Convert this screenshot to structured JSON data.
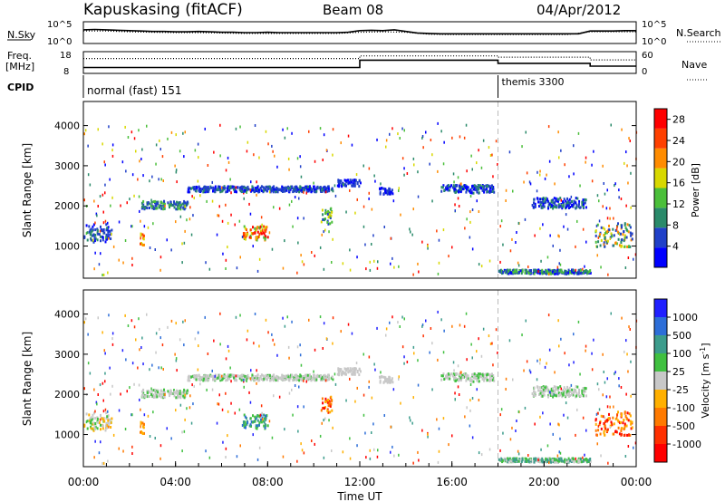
{
  "header": {
    "station": "Kapuskasing (fitACF)",
    "beam": "Beam 08",
    "date": "04/Apr/2012"
  },
  "colors": {
    "power": [
      "#0000ff",
      "#2040c8",
      "#2a8a6a",
      "#4bbf3a",
      "#d8d800",
      "#ff8c00",
      "#ff4000",
      "#ff0000"
    ],
    "velocity": [
      "#2020ff",
      "#2d6ed8",
      "#3c9c8c",
      "#40c040",
      "#c8c8c8",
      "#ffb000",
      "#ff7a00",
      "#ff3000",
      "#ff0000"
    ],
    "line": "#000000",
    "dash": "#bbbbbb"
  },
  "chart_data": [
    {
      "type": "line",
      "panel": "Noise",
      "left_axis_label": "N.Sky",
      "left_ticks": [
        "10^5",
        "10^0"
      ],
      "right_axis_label": "N.Search",
      "right_ticks": [
        "10^5",
        "10^0"
      ],
      "series": [
        {
          "name": "N.Sky",
          "style": "solid",
          "x": [
            0,
            0.5,
            1,
            1.5,
            2,
            2.5,
            3,
            3.5,
            4,
            4.5,
            5,
            5.5,
            6,
            6.5,
            7,
            7.5,
            8,
            8.5,
            9,
            9.5,
            10,
            10.5,
            11,
            11.5,
            12,
            12.5,
            13,
            13.5,
            14,
            14.5,
            15,
            15.5,
            16,
            16.5,
            17,
            17.5,
            18,
            18.5,
            19,
            19.5,
            20,
            20.5,
            21,
            21.5,
            22,
            22.5,
            23,
            23.5,
            24
          ],
          "y": [
            3.2,
            3.3,
            3.2,
            3.1,
            3.0,
            2.9,
            2.8,
            2.8,
            2.7,
            2.7,
            2.8,
            2.7,
            2.6,
            2.6,
            2.5,
            2.5,
            2.6,
            2.5,
            2.5,
            2.5,
            2.5,
            2.5,
            2.5,
            2.6,
            3.0,
            3.1,
            3.0,
            3.2,
            2.8,
            2.4,
            2.3,
            2.2,
            2.2,
            2.2,
            2.2,
            2.2,
            2.2,
            2.2,
            2.2,
            2.2,
            2.2,
            2.2,
            2.2,
            2.2,
            2.9,
            2.9,
            2.9,
            3.0,
            3.0
          ]
        },
        {
          "name": "N.Search",
          "style": "dotted",
          "x": [
            0,
            1,
            2,
            3,
            4,
            5,
            6,
            7,
            8,
            9,
            10,
            11,
            12,
            13,
            14,
            15,
            16,
            17,
            18,
            19,
            20,
            21,
            22,
            23,
            24
          ],
          "y": [
            2.9,
            2.9,
            2.7,
            2.6,
            2.5,
            2.5,
            2.4,
            2.3,
            2.3,
            2.3,
            2.3,
            2.3,
            2.6,
            2.7,
            2.6,
            2.1,
            2.0,
            2.0,
            2.0,
            2.0,
            2.0,
            2.0,
            2.7,
            2.7,
            2.7
          ]
        }
      ],
      "xlim": [
        0,
        24
      ],
      "ylim": [
        0,
        5
      ]
    },
    {
      "type": "line",
      "panel": "Frequency",
      "left_axis_label": "Freq.",
      "left_unit": "[MHz]",
      "left_ticks": [
        "18",
        "8"
      ],
      "right_axis_label": "Nave",
      "right_ticks": [
        "60",
        "0"
      ],
      "series": [
        {
          "name": "Freq.",
          "style": "solid",
          "x": [
            0,
            12,
            12,
            18,
            18,
            22,
            22,
            24
          ],
          "y": [
            10.5,
            10.5,
            14.2,
            14.2,
            12.6,
            12.6,
            11.2,
            11.2
          ]
        },
        {
          "name": "Nave",
          "style": "dotted",
          "x": [
            0,
            12,
            12,
            18,
            18,
            22,
            22,
            24
          ],
          "y": [
            42,
            42,
            50,
            50,
            46,
            46,
            38,
            38
          ]
        }
      ],
      "xlim": [
        0,
        24
      ]
    },
    {
      "type": "table",
      "panel": "CPID",
      "label": "CPID",
      "segments": [
        {
          "name": "normal (fast) 151",
          "start": 0,
          "end": 18
        },
        {
          "name": "themis 3300",
          "start": 18,
          "end": 24
        }
      ]
    },
    {
      "type": "heatmap",
      "panel": "Power",
      "ylabel": "Slant Range [km]",
      "yticks": [
        1000,
        2000,
        3000,
        4000
      ],
      "ylim": [
        200,
        4600
      ],
      "xlim": [
        0,
        24
      ],
      "colorbar_label": "Power [dB]",
      "colorbar_ticks": [
        4,
        8,
        12,
        16,
        20,
        24,
        28
      ],
      "colorbar_range": [
        0,
        30
      ],
      "mode_change_time": 18
    },
    {
      "type": "heatmap",
      "panel": "Velocity",
      "ylabel": "Slant Range [km]",
      "yticks": [
        1000,
        2000,
        3000,
        4000
      ],
      "ylim": [
        200,
        4600
      ],
      "xlim": [
        0,
        24
      ],
      "xlabel": "Time UT",
      "xticks": [
        "00:00",
        "04:00",
        "08:00",
        "12:00",
        "16:00",
        "20:00",
        "00:00"
      ],
      "colorbar_label": "Velocity [m s",
      "colorbar_label_exponent": "-1",
      "colorbar_label_close": "]",
      "colorbar_ticks": [
        "1000",
        "500",
        "100",
        "25",
        "-25",
        "-100",
        "-500",
        "-1000"
      ],
      "mode_change_time": 18
    }
  ]
}
